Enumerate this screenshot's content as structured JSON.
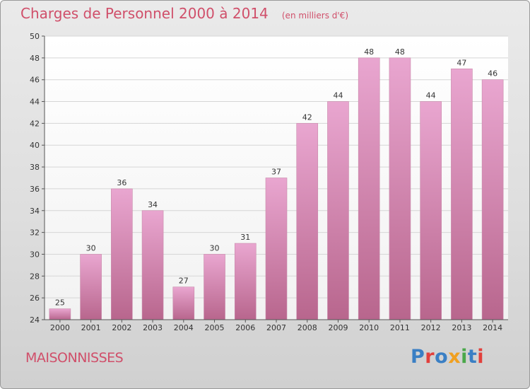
{
  "header": {
    "title": "Charges de Personnel 2000 à 2014",
    "unit": "(en milliers d'€)"
  },
  "footer": {
    "commune": "MAISONNISSES",
    "logo": "Proxiti"
  },
  "colors": {
    "bar_top": "#e9a6d0",
    "bar_bottom": "#b8668d",
    "title": "#d04f6a"
  },
  "chart_data": {
    "type": "bar",
    "title": "Charges de Personnel 2000 à 2014",
    "subtitle": "(en milliers d'€)",
    "categories": [
      "2000",
      "2001",
      "2002",
      "2003",
      "2004",
      "2005",
      "2006",
      "2007",
      "2008",
      "2009",
      "2010",
      "2011",
      "2012",
      "2013",
      "2014"
    ],
    "values": [
      25,
      30,
      36,
      34,
      27,
      30,
      31,
      37,
      42,
      44,
      48,
      48,
      44,
      47,
      46
    ],
    "ylim": [
      24,
      50
    ],
    "yticks": [
      24,
      26,
      28,
      30,
      32,
      34,
      36,
      38,
      40,
      42,
      44,
      46,
      48,
      50
    ],
    "grid": true,
    "data_labels": true
  }
}
